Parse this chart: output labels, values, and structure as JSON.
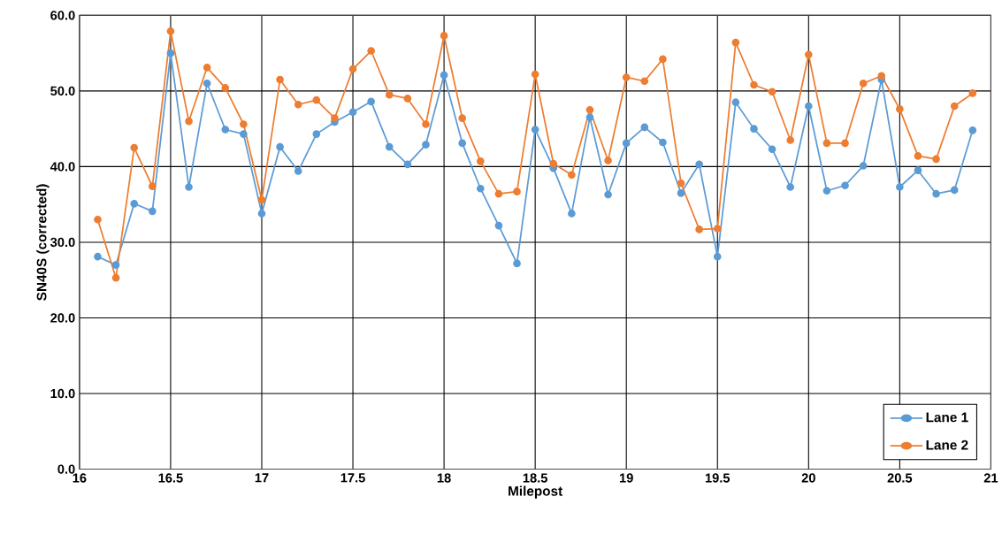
{
  "chart_data": {
    "type": "line",
    "xlabel": "Milepost",
    "ylabel": "SN40S (corrected)",
    "x": [
      16.1,
      16.2,
      16.3,
      16.4,
      16.5,
      16.6,
      16.7,
      16.8,
      16.9,
      17.0,
      17.1,
      17.2,
      17.3,
      17.4,
      17.5,
      17.6,
      17.7,
      17.8,
      17.9,
      18.0,
      18.1,
      18.2,
      18.3,
      18.4,
      18.5,
      18.6,
      18.7,
      18.8,
      18.9,
      19.0,
      19.1,
      19.2,
      19.3,
      19.4,
      19.5,
      19.6,
      19.7,
      19.8,
      19.9,
      20.0,
      20.1,
      20.2,
      20.3,
      20.4,
      20.5,
      20.6,
      20.7,
      20.8,
      20.9
    ],
    "series": [
      {
        "name": "Lane 1",
        "color": "#5b9bd5",
        "values": [
          28.1,
          27.0,
          35.1,
          34.1,
          55.0,
          37.3,
          51.0,
          44.9,
          44.3,
          33.8,
          42.6,
          39.4,
          44.3,
          45.9,
          47.2,
          48.6,
          42.6,
          40.3,
          42.9,
          52.1,
          43.1,
          37.1,
          32.2,
          27.2,
          44.9,
          39.8,
          33.8,
          46.5,
          36.3,
          43.1,
          45.2,
          43.2,
          36.5,
          40.3,
          28.1,
          48.5,
          45.0,
          42.3,
          37.3,
          48.0,
          36.8,
          37.5,
          40.1,
          51.5,
          37.3,
          39.5,
          36.4,
          36.9,
          44.8
        ]
      },
      {
        "name": "Lane 2",
        "color": "#ed7d31",
        "values": [
          33.0,
          25.3,
          42.5,
          37.4,
          57.9,
          46.0,
          53.1,
          50.4,
          45.6,
          35.6,
          51.5,
          48.2,
          48.8,
          46.4,
          52.9,
          55.3,
          49.5,
          49.0,
          45.6,
          57.3,
          46.4,
          40.7,
          36.4,
          36.7,
          52.2,
          40.4,
          38.9,
          47.5,
          40.8,
          51.8,
          51.3,
          54.2,
          37.8,
          31.7,
          31.8,
          56.4,
          50.8,
          49.9,
          43.5,
          54.8,
          43.1,
          43.1,
          51.0,
          52.0,
          47.6,
          41.4,
          41.0,
          48.0,
          49.7
        ]
      }
    ],
    "xlim": [
      16,
      21
    ],
    "xticks": [
      16,
      16.5,
      17,
      17.5,
      18,
      18.5,
      19,
      19.5,
      20,
      20.5,
      21
    ],
    "ylim": [
      0,
      60
    ],
    "yticks": [
      {
        "value": 0,
        "label": "0.0"
      },
      {
        "value": 10,
        "label": "10.0"
      },
      {
        "value": 20,
        "label": "20.0"
      },
      {
        "value": 30,
        "label": "30.0"
      },
      {
        "value": 40,
        "label": "40.0"
      },
      {
        "value": 50,
        "label": "50.0"
      },
      {
        "value": 60,
        "label": "60.0"
      }
    ],
    "grid": true,
    "legend": "bottom right",
    "marker": "circle",
    "line_style": "solid"
  }
}
